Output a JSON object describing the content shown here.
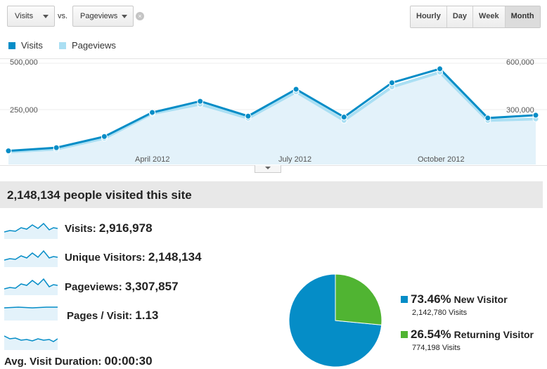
{
  "controls": {
    "metric1": "Visits",
    "vs_label": "vs.",
    "metric2": "Pageviews",
    "clear_glyph": "×",
    "granularity": [
      "Hourly",
      "Day",
      "Week",
      "Month"
    ],
    "active_granularity": "Month"
  },
  "legend": [
    {
      "label": "Visits",
      "color": "#058dc7"
    },
    {
      "label": "Pageviews",
      "color": "#aadff3"
    }
  ],
  "chart_data": {
    "type": "line",
    "x": [
      "2012-01",
      "2012-02",
      "2012-03",
      "2012-04",
      "2012-05",
      "2012-06",
      "2012-07",
      "2012-08",
      "2012-09",
      "2012-10",
      "2012-11",
      "2012-12"
    ],
    "xticks": [
      "April 2012",
      "July 2012",
      "October 2012"
    ],
    "yticks_left": [
      "500,000",
      "250,000"
    ],
    "yticks_right": [
      "600,000",
      "300,000"
    ],
    "ylim_left": [
      0,
      500000
    ],
    "ylim_right": [
      0,
      600000
    ],
    "grid": true,
    "series": [
      {
        "name": "Visits",
        "axis": "left",
        "color": "#058dc7",
        "values": [
          28000,
          45000,
          105000,
          235000,
          295000,
          215000,
          360000,
          210000,
          395000,
          470000,
          205000,
          220000
        ]
      },
      {
        "name": "Pageviews",
        "axis": "right",
        "color": "#aadff3",
        "values": [
          27000,
          45000,
          115000,
          275000,
          335000,
          245000,
          415000,
          230000,
          447000,
          542000,
          230000,
          240000
        ]
      }
    ]
  },
  "summary": "2,148,134 people visited this site",
  "metrics": [
    {
      "label": "Visits:",
      "value": "2,916,978"
    },
    {
      "label": "Unique Visitors:",
      "value": "2,148,134"
    },
    {
      "label": "Pageviews:",
      "value": "3,307,857"
    },
    {
      "label": "Pages / Visit:",
      "value": "1.13"
    },
    {
      "label": "Avg. Visit Duration:",
      "value": "00:00:30"
    }
  ],
  "pie_data": {
    "type": "pie",
    "slices": [
      {
        "name": "New Visitor",
        "pct": "73.46%",
        "value": 73.46,
        "sub": "2,142,780 Visits",
        "color": "#058dc7"
      },
      {
        "name": "Returning Visitor",
        "pct": "26.54%",
        "value": 26.54,
        "sub": "774,198 Visits",
        "color": "#50b432"
      }
    ]
  }
}
